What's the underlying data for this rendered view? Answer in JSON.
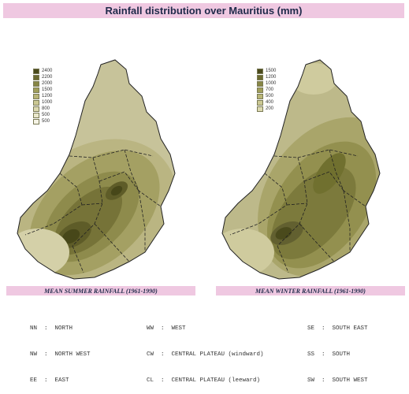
{
  "title": "Rainfall distribution over Mauritius (mm)",
  "maps": [
    {
      "caption": "MEAN SUMMER RAINFALL (1961-1990)",
      "legend": [
        {
          "label": "2400",
          "color": "#4a4a1c"
        },
        {
          "label": "2200",
          "color": "#6b6a30"
        },
        {
          "label": "2000",
          "color": "#878645"
        },
        {
          "label": "1500",
          "color": "#a09e5a"
        },
        {
          "label": "1200",
          "color": "#b8b576"
        },
        {
          "label": "1000",
          "color": "#cbc893"
        },
        {
          "label": "800",
          "color": "#dcd9b0"
        },
        {
          "label": "500",
          "color": "#eae8cc"
        },
        {
          "label": "500",
          "color": "#f6f4e6"
        }
      ]
    },
    {
      "caption": "MEAN WINTER RAINFALL (1961-1990)",
      "legend": [
        {
          "label": "1500",
          "color": "#4a4a1c"
        },
        {
          "label": "1200",
          "color": "#6b6a30"
        },
        {
          "label": "1000",
          "color": "#878645"
        },
        {
          "label": "700",
          "color": "#a09e5a"
        },
        {
          "label": "500",
          "color": "#b8b576"
        },
        {
          "label": "400",
          "color": "#cbc893"
        },
        {
          "label": "200",
          "color": "#dcd9b0"
        }
      ]
    }
  ],
  "key": {
    "col1": [
      "NN  :  NORTH",
      "NW  :  NORTH WEST",
      "EE  :  EAST"
    ],
    "col2": [
      "WW  :  WEST",
      "CW  :  CENTRAL PLATEAU (windward)",
      "CL  :  CENTRAL PLATEAU (leeward)"
    ],
    "col3": [
      "SE  :  SOUTH EAST",
      "SS  :  SOUTH",
      "SW  :  SOUTH WEST"
    ]
  }
}
